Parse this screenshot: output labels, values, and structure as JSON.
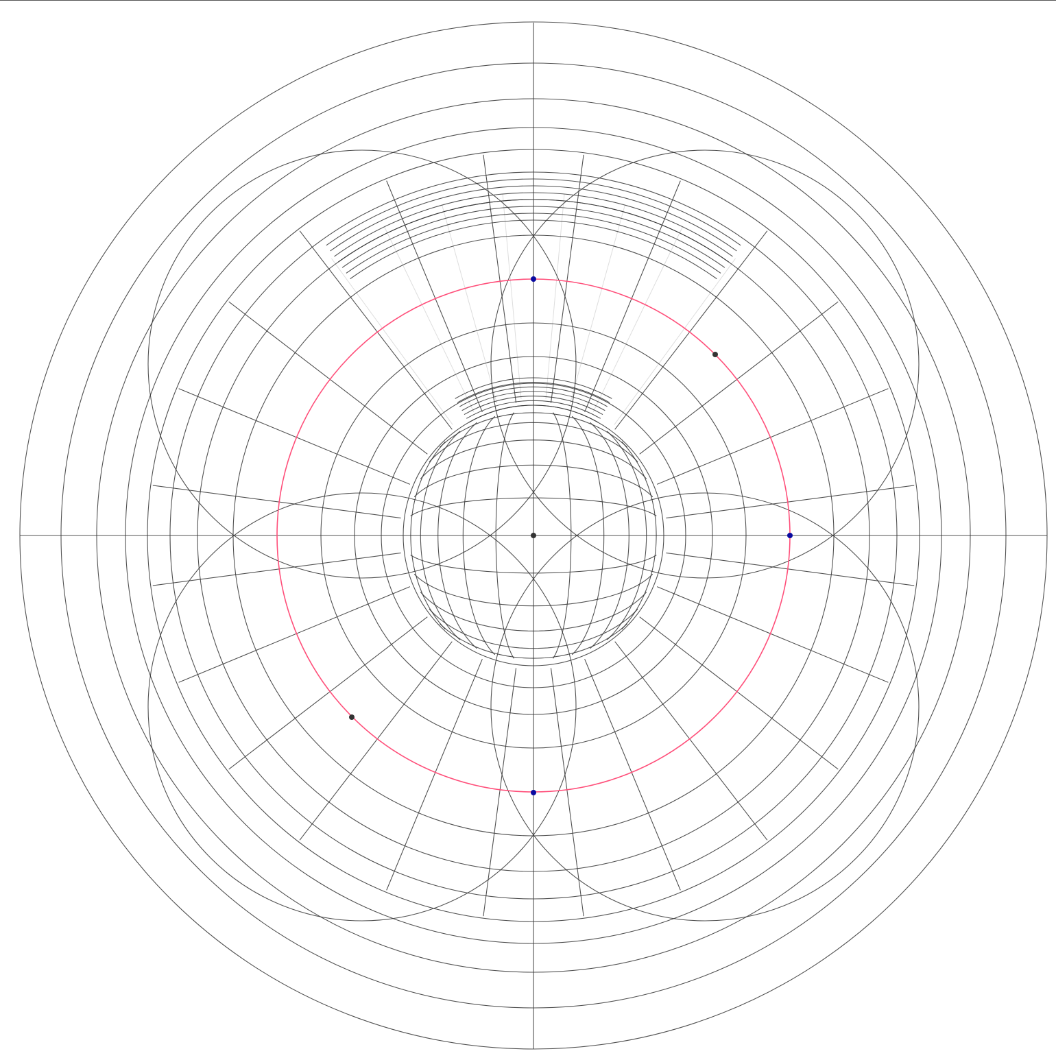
{
  "canvas": {
    "background": "#ffffff",
    "grid_color": "#333333",
    "faint_guide_color": "#dddddd",
    "highlight_circle_color": "#ff4f7a",
    "control_point_primary_color": "#0a0aa0",
    "control_point_secondary_color": "#333333"
  }
}
